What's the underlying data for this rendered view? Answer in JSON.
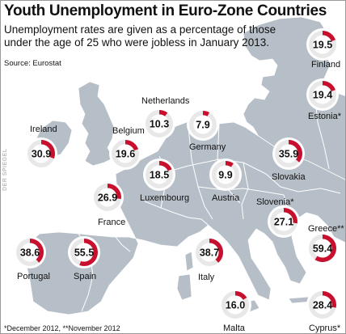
{
  "chart_data": {
    "type": "pie",
    "title": "Youth Unemployment in Euro-Zone Countries",
    "subtitle": "Unemployment rates are given as a percentage of those under the age of 25 who were jobless in January 2013.",
    "source": "Source: Eurostat",
    "footnote": "*December 2012, **November 2012",
    "credit": "DER SPIEGEL",
    "unit": "percent",
    "colors": {
      "filled": "#c8102e",
      "empty": "#e8e8e8",
      "land": "#b6bfc7",
      "sea": "#ffffff",
      "border": "#ffffff"
    },
    "countries": [
      {
        "name": "Finland",
        "label": "Finland",
        "value": 19.5,
        "display": "19.5"
      },
      {
        "name": "Estonia",
        "label": "Estonia*",
        "value": 19.4,
        "display": "19.4"
      },
      {
        "name": "Netherlands",
        "label": "Netherlands",
        "value": 10.3,
        "display": "10.3"
      },
      {
        "name": "Ireland",
        "label": "Ireland",
        "value": 30.9,
        "display": "30.9"
      },
      {
        "name": "Belgium",
        "label": "Belgium",
        "value": 19.6,
        "display": "19.6"
      },
      {
        "name": "Germany",
        "label": "Germany",
        "value": 7.9,
        "display": "7.9"
      },
      {
        "name": "Slovakia",
        "label": "Slovakia",
        "value": 35.9,
        "display": "35.9"
      },
      {
        "name": "Luxembourg",
        "label": "Luxembourg",
        "value": 18.5,
        "display": "18.5"
      },
      {
        "name": "Austria",
        "label": "Austria",
        "value": 9.9,
        "display": "9.9"
      },
      {
        "name": "France",
        "label": "France",
        "value": 26.9,
        "display": "26.9"
      },
      {
        "name": "Slovenia",
        "label": "Slovenia*",
        "value": 27.1,
        "display": "27.1"
      },
      {
        "name": "Greece",
        "label": "Greece**",
        "value": 59.4,
        "display": "59.4"
      },
      {
        "name": "Portugal",
        "label": "Portugal",
        "value": 38.6,
        "display": "38.6"
      },
      {
        "name": "Spain",
        "label": "Spain",
        "value": 55.5,
        "display": "55.5"
      },
      {
        "name": "Italy",
        "label": "Italy",
        "value": 38.7,
        "display": "38.7"
      },
      {
        "name": "Malta",
        "label": "Malta",
        "value": 16.0,
        "display": "16.0"
      },
      {
        "name": "Cyprus",
        "label": "Cyprus*",
        "value": 28.4,
        "display": "28.4"
      }
    ]
  }
}
